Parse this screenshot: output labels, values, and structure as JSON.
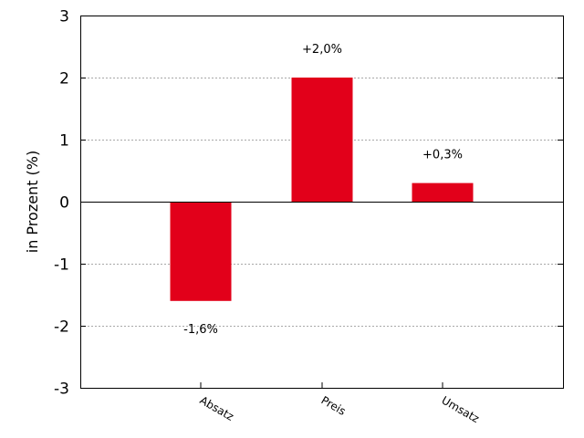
{
  "chart_data": {
    "type": "bar",
    "title": "",
    "xlabel": "",
    "ylabel": "in Prozent (%)",
    "categories": [
      "Absatz",
      "Preis",
      "Umsatz"
    ],
    "values": [
      -1.6,
      2.0,
      0.3
    ],
    "data_labels": [
      "-1,6%",
      "+2,0%",
      "+0,3%"
    ],
    "ylim": [
      -3,
      3
    ],
    "yticks": [
      "3",
      "2",
      "1",
      "0",
      "-1",
      "-2",
      "-3"
    ],
    "grid": "horizontal dotted",
    "bar_color": "#e2001a"
  }
}
